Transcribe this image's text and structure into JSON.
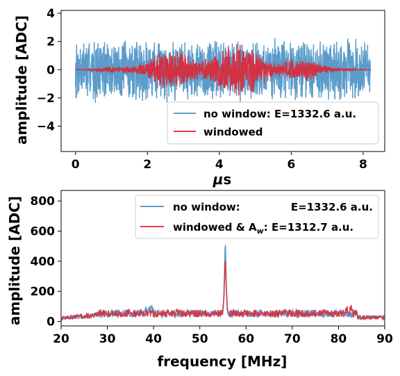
{
  "colors": {
    "no_window": "#5b9ccb",
    "windowed": "#ee3a3f",
    "windowed_overlay": "#d92b3a"
  },
  "chart_data": [
    {
      "type": "line",
      "xlabel_prefix": "μ",
      "xlabel_suffix": "s",
      "ylabel": "amplitude [ADC]",
      "xlim": [
        -0.4,
        8.6
      ],
      "ylim": [
        -5.8,
        4.2
      ],
      "xticks": [
        0,
        2,
        4,
        6,
        8
      ],
      "yticks": [
        -4,
        -2,
        0,
        2,
        4
      ],
      "xtick_labels": [
        "0",
        "2",
        "4",
        "6",
        "8"
      ],
      "ytick_labels": [
        "−4",
        "−2",
        "0",
        "2",
        "4"
      ],
      "grid": false,
      "legend_position": "lower-right",
      "series": [
        {
          "name": "no window: E=1332.6 a.u.",
          "x_range": [
            0,
            8.2
          ],
          "noise_amplitude": 2.5,
          "envelope": "flat"
        },
        {
          "name": "windowed",
          "x_range": [
            0,
            8.2
          ],
          "noise_amplitude": 2.3,
          "envelope": "hann"
        }
      ]
    },
    {
      "type": "line",
      "xlabel": "frequency [MHz]",
      "ylabel": "amplitude [ADC]",
      "xlim": [
        20,
        90
      ],
      "ylim": [
        -30,
        870
      ],
      "xticks": [
        20,
        30,
        40,
        50,
        60,
        70,
        80,
        90
      ],
      "yticks": [
        0,
        200,
        400,
        600,
        800
      ],
      "xtick_labels": [
        "20",
        "30",
        "40",
        "50",
        "60",
        "70",
        "80",
        "90"
      ],
      "ytick_labels": [
        "0",
        "200",
        "400",
        "600",
        "800"
      ],
      "grid": false,
      "legend_position": "upper-right",
      "peak": {
        "x": 55.5,
        "no_window": 590,
        "windowed": 470
      },
      "series": [
        {
          "name_prefix": "no window:",
          "name_energy": "E=1332.6 a.u."
        },
        {
          "name_prefix": "windowed & A",
          "name_sub": "w",
          "name_suffix": ": E=1312.7 a.u."
        }
      ]
    }
  ]
}
